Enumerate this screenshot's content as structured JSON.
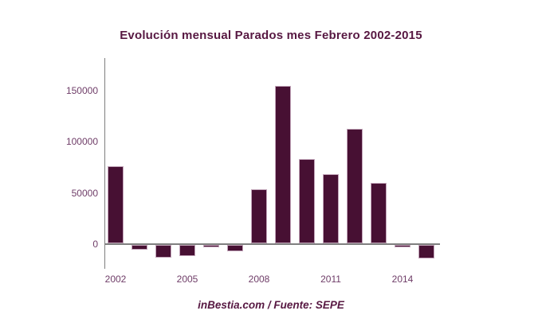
{
  "page": {
    "background_color": "#ffffff"
  },
  "header": {
    "title": "Evolución mensual Parados mes Febrero 2002-2015"
  },
  "footer": {
    "caption": "inBestia.com / Fuente: SEPE"
  },
  "chart_data": {
    "type": "bar",
    "title": "Evolución mensual Parados mes Febrero 2002-2015",
    "xlabel": "",
    "ylabel": "",
    "categories": [
      2002,
      2003,
      2004,
      2005,
      2006,
      2007,
      2008,
      2009,
      2010,
      2011,
      2012,
      2013,
      2014,
      2015
    ],
    "values": [
      75000,
      -5000,
      -12500,
      -11000,
      -2500,
      -6000,
      53000,
      154000,
      82000,
      68000,
      112000,
      59000,
      -2000,
      -13000
    ],
    "x_ticks": [
      {
        "value": 2002,
        "label": "2002"
      },
      {
        "value": 2005,
        "label": "2005"
      },
      {
        "value": 2008,
        "label": "2008"
      },
      {
        "value": 2011,
        "label": "2011"
      },
      {
        "value": 2014,
        "label": "2014"
      }
    ],
    "y_ticks": [
      {
        "value": 0,
        "label": "0"
      },
      {
        "value": 50000,
        "label": "50000"
      },
      {
        "value": 100000,
        "label": "100000"
      },
      {
        "value": 150000,
        "label": "150000"
      }
    ],
    "ylim": [
      -20000,
      170000
    ],
    "grid": "off",
    "legend": "none",
    "bar_fill_color": "#471033",
    "bar_border_color": "#c2a4b9",
    "axis_color": "#7f7f7f",
    "label_color": "#6f3d68",
    "title_color": "#571842",
    "caption": "inBestia.com / Fuente: SEPE"
  }
}
